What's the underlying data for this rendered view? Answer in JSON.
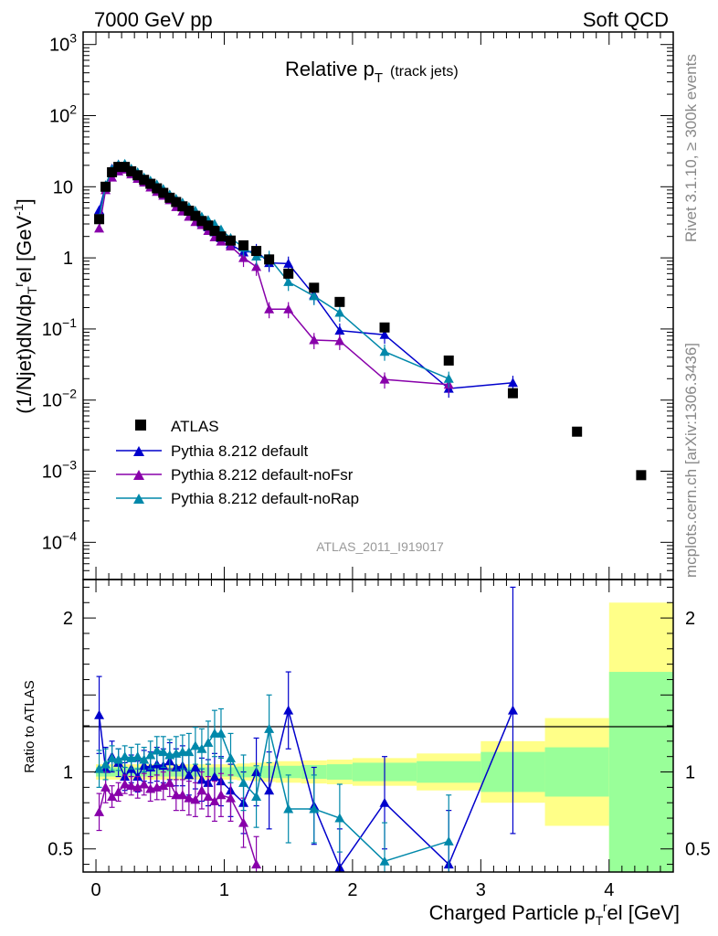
{
  "header": {
    "left": "7000 GeV pp",
    "right": "Soft QCD"
  },
  "side_labels": {
    "rivet": "Rivet 3.1.10, ≥ 300k events",
    "mcplots": "mcplots.cern.ch [arXiv:1306.3436]"
  },
  "chart_data": [
    {
      "type": "scatter",
      "panel": "main",
      "title": "Relative p",
      "title_sub": "T",
      "title_suffix": "(track jets)",
      "watermark": "ATLAS_2011_I919017",
      "ylabel": "(1/Njet)dN/dp",
      "ylabel_sub": "T",
      "ylabel_sup": "r",
      "ylabel_rest": "el [GeV",
      "ylabel_unit_sup": "-1",
      "ylabel_end": "]",
      "yscale": "log",
      "ylim": [
        3e-05,
        1500
      ],
      "xlim": [
        -0.1,
        4.5
      ],
      "y_ticks": [
        {
          "value": 0.0001,
          "base": "10",
          "exp": "−4"
        },
        {
          "value": 0.001,
          "base": "10",
          "exp": "−3"
        },
        {
          "value": 0.01,
          "base": "10",
          "exp": "−2"
        },
        {
          "value": 0.1,
          "base": "10",
          "exp": "−1"
        },
        {
          "value": 1,
          "base": "1",
          "exp": ""
        },
        {
          "value": 10,
          "base": "10",
          "exp": ""
        },
        {
          "value": 100,
          "base": "10",
          "exp": "2"
        },
        {
          "value": 1000,
          "base": "10",
          "exp": "3"
        }
      ],
      "legend_position": "lower-left",
      "series": [
        {
          "name": "ATLAS",
          "color": "#000000",
          "marker": "square",
          "x": [
            0.025,
            0.075,
            0.125,
            0.175,
            0.225,
            0.275,
            0.325,
            0.375,
            0.425,
            0.475,
            0.525,
            0.575,
            0.625,
            0.675,
            0.725,
            0.775,
            0.825,
            0.875,
            0.925,
            0.975,
            1.05,
            1.15,
            1.25,
            1.35,
            1.5,
            1.7,
            1.9,
            2.25,
            2.75,
            3.25,
            3.75,
            4.25
          ],
          "y": [
            3.5,
            10.0,
            16.0,
            19.0,
            19.0,
            16.5,
            14.5,
            12.5,
            11.0,
            9.5,
            8.2,
            7.0,
            6.1,
            5.3,
            4.6,
            3.9,
            3.3,
            2.85,
            2.4,
            2.0,
            1.75,
            1.5,
            1.25,
            0.95,
            0.6,
            0.38,
            0.24,
            0.105,
            0.036,
            0.0125,
            0.0036,
            0.00088
          ]
        },
        {
          "name": "Pythia 8.212 default",
          "color": "#0000cc",
          "marker": "triangle",
          "x": [
            0.025,
            0.075,
            0.125,
            0.175,
            0.225,
            0.275,
            0.325,
            0.375,
            0.425,
            0.475,
            0.525,
            0.575,
            0.625,
            0.675,
            0.725,
            0.775,
            0.825,
            0.875,
            0.925,
            0.975,
            1.05,
            1.15,
            1.25,
            1.35,
            1.5,
            1.7,
            1.9,
            2.25,
            2.75,
            3.25
          ],
          "y": [
            4.7,
            10.3,
            18.0,
            20.5,
            18.5,
            16.8,
            14.0,
            13.0,
            11.3,
            10.0,
            8.5,
            7.5,
            6.3,
            5.5,
            4.5,
            4.0,
            3.1,
            2.7,
            2.3,
            1.9,
            1.55,
            1.2,
            1.25,
            0.85,
            0.83,
            0.3,
            0.095,
            0.083,
            0.0145,
            0.0175
          ]
        },
        {
          "name": "Pythia 8.212 default-noFsr",
          "color": "#8800aa",
          "marker": "triangle",
          "x": [
            0.025,
            0.075,
            0.125,
            0.175,
            0.225,
            0.275,
            0.325,
            0.375,
            0.425,
            0.475,
            0.525,
            0.575,
            0.625,
            0.675,
            0.725,
            0.775,
            0.825,
            0.875,
            0.925,
            0.975,
            1.05,
            1.15,
            1.25,
            1.35,
            1.5,
            1.7,
            1.9,
            2.25,
            2.75
          ],
          "y": [
            2.6,
            9.0,
            13.5,
            16.5,
            17.5,
            15.0,
            13.0,
            11.5,
            9.8,
            8.5,
            7.5,
            6.5,
            5.2,
            4.5,
            3.8,
            3.2,
            2.9,
            2.4,
            1.95,
            1.7,
            1.45,
            1.0,
            0.75,
            0.19,
            0.19,
            0.07,
            0.068,
            0.0195,
            0.0165
          ]
        },
        {
          "name": "Pythia 8.212 default-noRap",
          "color": "#0088aa",
          "marker": "triangle",
          "x": [
            0.025,
            0.075,
            0.125,
            0.175,
            0.225,
            0.275,
            0.325,
            0.375,
            0.425,
            0.475,
            0.525,
            0.575,
            0.625,
            0.675,
            0.725,
            0.775,
            0.825,
            0.875,
            0.925,
            0.975,
            1.05,
            1.15,
            1.25,
            1.35,
            1.5,
            1.7,
            1.9,
            2.25,
            2.75
          ],
          "y": [
            3.6,
            10.5,
            17.5,
            20.5,
            21.0,
            18.0,
            16.0,
            13.5,
            12.2,
            10.8,
            9.3,
            7.8,
            6.8,
            6.0,
            5.2,
            4.6,
            3.8,
            3.4,
            3.0,
            2.5,
            1.9,
            1.4,
            1.05,
            1.0,
            0.46,
            0.29,
            0.17,
            0.048,
            0.02
          ]
        }
      ]
    },
    {
      "type": "scatter",
      "panel": "ratio",
      "ylabel": "Ratio to ATLAS",
      "xlabel": "Charged Particle p",
      "xlabel_sub": "T",
      "xlabel_sup": "r",
      "xlabel_rest": "el [GeV]",
      "ylim": [
        0.35,
        2.25
      ],
      "xlim": [
        -0.1,
        4.5
      ],
      "x_ticks": [
        {
          "value": 0,
          "label": "0"
        },
        {
          "value": 1,
          "label": "1"
        },
        {
          "value": 2,
          "label": "2"
        },
        {
          "value": 3,
          "label": "3"
        },
        {
          "value": 4,
          "label": "4"
        }
      ],
      "y_ticks": [
        {
          "value": 0.5,
          "label": "0.5"
        },
        {
          "value": 1,
          "label": "1"
        },
        {
          "value": 2,
          "label": "2"
        }
      ],
      "bands": {
        "edges": [
          0.0,
          0.1,
          0.2,
          0.3,
          0.4,
          0.5,
          0.6,
          0.7,
          0.8,
          0.9,
          1.0,
          1.1,
          1.2,
          1.3,
          1.4,
          1.6,
          1.8,
          2.0,
          2.5,
          3.0,
          3.5,
          4.0,
          4.5
        ],
        "stat_green": [
          0.03,
          0.03,
          0.03,
          0.03,
          0.03,
          0.03,
          0.03,
          0.03,
          0.03,
          0.03,
          0.03,
          0.035,
          0.035,
          0.04,
          0.04,
          0.045,
          0.05,
          0.06,
          0.07,
          0.13,
          0.16,
          0.65
        ],
        "total_yellow": [
          0.05,
          0.05,
          0.05,
          0.05,
          0.05,
          0.05,
          0.05,
          0.05,
          0.05,
          0.05,
          0.05,
          0.055,
          0.06,
          0.065,
          0.07,
          0.075,
          0.08,
          0.09,
          0.12,
          0.2,
          0.35,
          1.1
        ]
      },
      "series": [
        {
          "name": "Pythia 8.212 default",
          "color": "#0000cc",
          "x": [
            0.025,
            0.075,
            0.125,
            0.175,
            0.225,
            0.275,
            0.325,
            0.375,
            0.425,
            0.475,
            0.525,
            0.575,
            0.625,
            0.675,
            0.725,
            0.775,
            0.825,
            0.875,
            0.925,
            0.975,
            1.05,
            1.15,
            1.25,
            1.35,
            1.5,
            1.7,
            1.9,
            2.25,
            2.75,
            3.25
          ],
          "y": [
            1.37,
            1.02,
            1.1,
            1.06,
            0.97,
            1.02,
            0.97,
            1.04,
            1.03,
            1.05,
            1.04,
            1.07,
            1.03,
            1.04,
            0.98,
            1.03,
            0.95,
            0.93,
            0.97,
            0.94,
            0.88,
            0.8,
            1.0,
            0.88,
            1.4,
            0.78,
            0.38,
            0.8,
            0.4,
            1.4
          ],
          "err": [
            0.25,
            0.14,
            0.1,
            0.09,
            0.09,
            0.09,
            0.1,
            0.1,
            0.1,
            0.11,
            0.11,
            0.12,
            0.12,
            0.13,
            0.13,
            0.14,
            0.14,
            0.15,
            0.15,
            0.16,
            0.17,
            0.2,
            0.22,
            0.25,
            0.25,
            0.25,
            0.25,
            0.3,
            0.35,
            0.8
          ]
        },
        {
          "name": "Pythia 8.212 default-noFsr",
          "color": "#8800aa",
          "x": [
            0.025,
            0.075,
            0.125,
            0.175,
            0.225,
            0.275,
            0.325,
            0.375,
            0.425,
            0.475,
            0.525,
            0.575,
            0.625,
            0.675,
            0.725,
            0.775,
            0.825,
            0.875,
            0.925,
            0.975,
            1.05,
            1.15,
            1.25
          ],
          "y": [
            0.74,
            0.9,
            0.84,
            0.87,
            0.92,
            0.91,
            0.9,
            0.92,
            0.89,
            0.9,
            0.91,
            0.93,
            0.85,
            0.85,
            0.83,
            0.82,
            0.88,
            0.84,
            0.81,
            0.85,
            0.83,
            0.67,
            0.4
          ],
          "err": [
            0.12,
            0.1,
            0.07,
            0.06,
            0.06,
            0.06,
            0.07,
            0.07,
            0.08,
            0.08,
            0.09,
            0.09,
            0.1,
            0.1,
            0.11,
            0.11,
            0.12,
            0.13,
            0.13,
            0.14,
            0.15,
            0.16,
            0.18
          ]
        },
        {
          "name": "Pythia 8.212 default-noRap",
          "color": "#0088aa",
          "x": [
            0.025,
            0.075,
            0.125,
            0.175,
            0.225,
            0.275,
            0.325,
            0.375,
            0.425,
            0.475,
            0.525,
            0.575,
            0.625,
            0.675,
            0.725,
            0.775,
            0.825,
            0.875,
            0.925,
            0.975,
            1.05,
            1.15,
            1.25,
            1.35,
            1.5,
            1.7,
            1.9,
            2.25,
            2.75
          ],
          "y": [
            1.02,
            1.05,
            1.09,
            1.08,
            1.1,
            1.09,
            1.1,
            1.08,
            1.11,
            1.14,
            1.13,
            1.11,
            1.12,
            1.13,
            1.13,
            1.17,
            1.15,
            1.19,
            1.25,
            1.25,
            1.09,
            0.93,
            0.84,
            1.28,
            0.76,
            0.76,
            0.7,
            0.42,
            0.55
          ],
          "err": [
            0.12,
            0.1,
            0.08,
            0.07,
            0.07,
            0.07,
            0.08,
            0.08,
            0.09,
            0.09,
            0.1,
            0.1,
            0.11,
            0.11,
            0.12,
            0.12,
            0.13,
            0.14,
            0.15,
            0.16,
            0.16,
            0.18,
            0.2,
            0.22,
            0.22,
            0.22,
            0.22,
            0.25,
            0.3
          ]
        }
      ]
    }
  ]
}
